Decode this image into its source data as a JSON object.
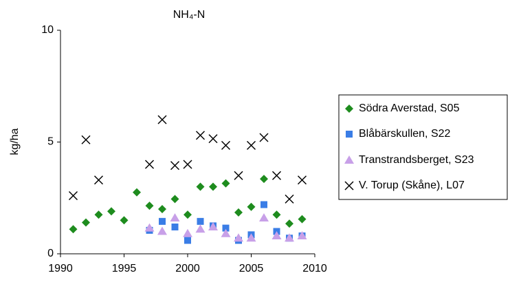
{
  "chart_data": {
    "type": "scatter",
    "title": "NH₄-N",
    "y_label": "kg/ha",
    "x": [
      1991,
      1992,
      1993,
      1994,
      1995,
      1996,
      1997,
      1998,
      1999,
      2000,
      2001,
      2002,
      2003,
      2004,
      2005,
      2006,
      2007,
      2008,
      2009
    ],
    "series": [
      {
        "name": "Södra Averstad, S05",
        "color": "#1e8c1e",
        "marker": "diamond",
        "values": [
          1.1,
          1.4,
          1.75,
          1.9,
          1.5,
          2.75,
          2.15,
          2.0,
          2.45,
          1.75,
          3.0,
          3.0,
          3.15,
          1.85,
          2.1,
          3.35,
          1.75,
          1.35,
          1.55
        ]
      },
      {
        "name": "Blåbärskullen, S22",
        "color": "#3a7de6",
        "marker": "square",
        "values": [
          null,
          null,
          null,
          null,
          null,
          null,
          1.05,
          1.45,
          1.2,
          0.6,
          1.45,
          1.25,
          1.15,
          0.6,
          0.85,
          2.2,
          1.0,
          0.7,
          0.8
        ]
      },
      {
        "name": "Transtrandsberget, S23",
        "color": "#c8a0e8",
        "marker": "triangle",
        "values": [
          null,
          null,
          null,
          null,
          null,
          null,
          1.15,
          1.0,
          1.6,
          0.9,
          1.1,
          1.2,
          0.9,
          0.7,
          0.7,
          1.6,
          0.8,
          0.7,
          0.8
        ]
      },
      {
        "name": "V. Torup (Skåne), L07",
        "color": "#000000",
        "marker": "x",
        "values": [
          2.6,
          5.1,
          3.3,
          null,
          null,
          null,
          4.0,
          6.0,
          3.95,
          4.0,
          5.3,
          5.15,
          4.85,
          3.5,
          4.85,
          5.2,
          3.5,
          2.45,
          3.3
        ]
      }
    ],
    "xlim": [
      1990,
      2010
    ],
    "xticks": [
      1990,
      1995,
      2000,
      2005,
      2010
    ],
    "ylim": [
      0,
      10
    ],
    "yticks": [
      0,
      5,
      10
    ],
    "grid": false,
    "legend": "right"
  }
}
